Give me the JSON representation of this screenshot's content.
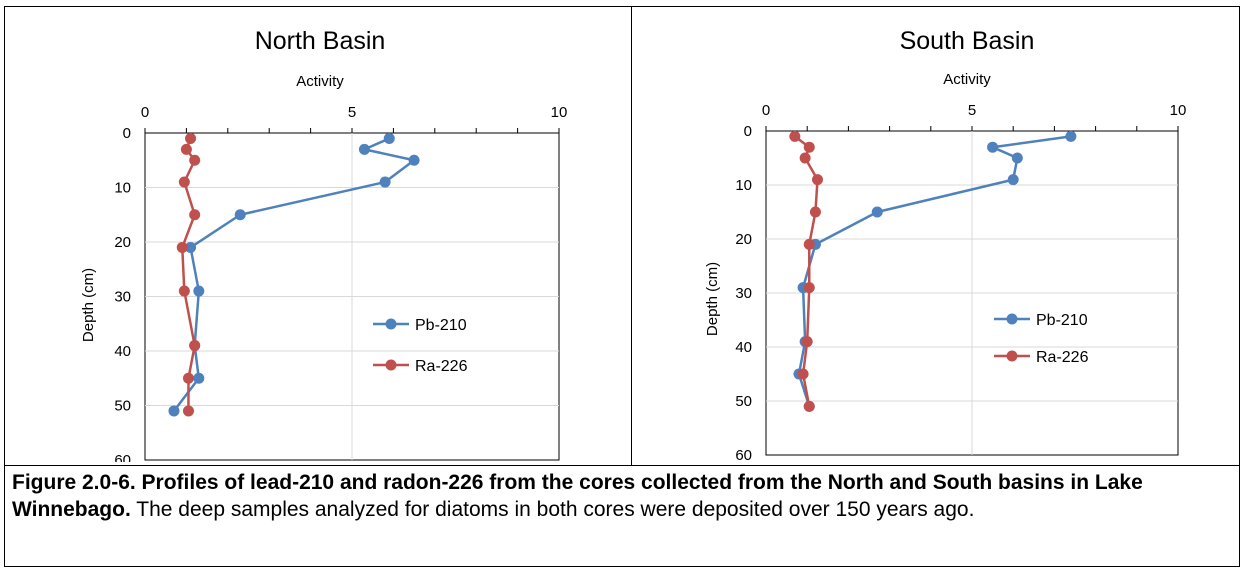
{
  "chart_data": [
    {
      "type": "line",
      "title": "North Basin",
      "xlabel": "Activity",
      "ylabel": "Depth (cm)",
      "xlim": [
        0,
        10
      ],
      "ylim": [
        0,
        60
      ],
      "x_ticks": [
        "0",
        "5",
        "10"
      ],
      "y_ticks": [
        "0",
        "10",
        "20",
        "30",
        "40",
        "50",
        "60"
      ],
      "y_axis_inverted": true,
      "x_axis_position": "top",
      "grid": "major gridlines on both axes",
      "legend_position": "center-right",
      "series": [
        {
          "name": "Pb-210",
          "color": "#4f81bd",
          "points": [
            {
              "activity": 5.9,
              "depth": 1
            },
            {
              "activity": 5.3,
              "depth": 3
            },
            {
              "activity": 6.5,
              "depth": 5
            },
            {
              "activity": 5.8,
              "depth": 9
            },
            {
              "activity": 2.3,
              "depth": 15
            },
            {
              "activity": 1.1,
              "depth": 21
            },
            {
              "activity": 1.3,
              "depth": 29
            },
            {
              "activity": 1.2,
              "depth": 39
            },
            {
              "activity": 1.3,
              "depth": 45
            },
            {
              "activity": 0.7,
              "depth": 51
            }
          ]
        },
        {
          "name": "Ra-226",
          "color": "#c0504d",
          "points": [
            {
              "activity": 1.1,
              "depth": 1
            },
            {
              "activity": 1.0,
              "depth": 3
            },
            {
              "activity": 1.2,
              "depth": 5
            },
            {
              "activity": 0.95,
              "depth": 9
            },
            {
              "activity": 1.2,
              "depth": 15
            },
            {
              "activity": 0.9,
              "depth": 21
            },
            {
              "activity": 0.95,
              "depth": 29
            },
            {
              "activity": 1.2,
              "depth": 39
            },
            {
              "activity": 1.05,
              "depth": 45
            },
            {
              "activity": 1.05,
              "depth": 51
            }
          ]
        }
      ]
    },
    {
      "type": "line",
      "title": "South Basin",
      "xlabel": "Activity",
      "ylabel": "Depth (cm)",
      "xlim": [
        0,
        10
      ],
      "ylim": [
        0,
        60
      ],
      "x_ticks": [
        "0",
        "5",
        "10"
      ],
      "y_ticks": [
        "0",
        "10",
        "20",
        "30",
        "40",
        "50",
        "60"
      ],
      "y_axis_inverted": true,
      "x_axis_position": "top",
      "grid": "major gridlines on both axes",
      "legend_position": "center-right",
      "series": [
        {
          "name": "Pb-210",
          "color": "#4f81bd",
          "points": [
            {
              "activity": 7.4,
              "depth": 1
            },
            {
              "activity": 5.5,
              "depth": 3
            },
            {
              "activity": 6.1,
              "depth": 5
            },
            {
              "activity": 6.0,
              "depth": 9
            },
            {
              "activity": 2.7,
              "depth": 15
            },
            {
              "activity": 1.2,
              "depth": 21
            },
            {
              "activity": 0.9,
              "depth": 29
            },
            {
              "activity": 0.95,
              "depth": 39
            },
            {
              "activity": 0.8,
              "depth": 45
            },
            {
              "activity": 1.05,
              "depth": 51
            }
          ]
        },
        {
          "name": "Ra-226",
          "color": "#c0504d",
          "points": [
            {
              "activity": 0.7,
              "depth": 1
            },
            {
              "activity": 1.05,
              "depth": 3
            },
            {
              "activity": 0.95,
              "depth": 5
            },
            {
              "activity": 1.25,
              "depth": 9
            },
            {
              "activity": 1.2,
              "depth": 15
            },
            {
              "activity": 1.05,
              "depth": 21
            },
            {
              "activity": 1.05,
              "depth": 29
            },
            {
              "activity": 1.0,
              "depth": 39
            },
            {
              "activity": 0.9,
              "depth": 45
            },
            {
              "activity": 1.05,
              "depth": 51
            }
          ]
        }
      ]
    }
  ],
  "caption": {
    "bold": "Figure 2.0-6. Profiles of lead-210 and radon-226 from the cores collected from the North and South basins in Lake Winnebago.",
    "text": "  The deep samples analyzed for diatoms in both cores were deposited over 150 years ago."
  }
}
